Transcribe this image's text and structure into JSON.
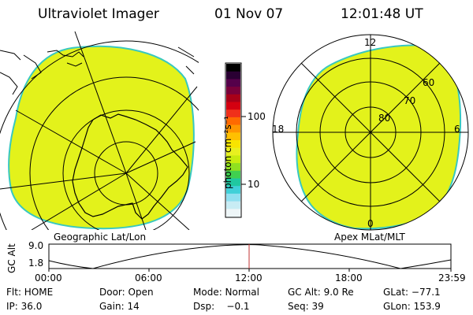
{
  "header": {
    "instrument": "Ultraviolet Imager",
    "date": "01 Nov 07",
    "time": "12:01:48 UT"
  },
  "left_panel": {
    "label": "Geographic Lat/Lon",
    "fill_color": "#e3f21b"
  },
  "right_panel": {
    "label": "Apex MLat/MLT",
    "mlt_labels": [
      "12",
      "18",
      "6",
      "0"
    ],
    "mlat_labels": [
      "60",
      "70",
      "80"
    ],
    "fill_color": "#e3f21b"
  },
  "colorbar": {
    "unit_label": "photon cm⁻²s⁻¹",
    "tick_labels": [
      "100",
      "10"
    ],
    "colors": [
      "#000000",
      "#2a0033",
      "#55004a",
      "#7a003a",
      "#a80018",
      "#d40010",
      "#f0301a",
      "#ff6a00",
      "#ff9600",
      "#ffc000",
      "#f8e400",
      "#e8f020",
      "#c8ec10",
      "#90e020",
      "#40d050",
      "#20c8a0",
      "#40d0d8",
      "#90e0f0",
      "#c8ecf4",
      "#eef6f8"
    ]
  },
  "altitude_plot": {
    "ylabel": "GC Alt",
    "y_ticks": [
      "9.0",
      "1.8"
    ],
    "x_ticks": [
      "00:00",
      "06:00",
      "12:00",
      "18:00",
      "23:59"
    ],
    "marker_color": "#c03030"
  },
  "info": {
    "row1": [
      "Flt: HOME",
      "Door: Open",
      "Mode: Normal",
      "GC Alt: 9.0 Re",
      "GLat: −77.1"
    ],
    "row2": [
      "IP: 36.0",
      "Gain: 14",
      "Dsp:    −0.1",
      "Seq: 39",
      "GLon: 153.9"
    ]
  }
}
